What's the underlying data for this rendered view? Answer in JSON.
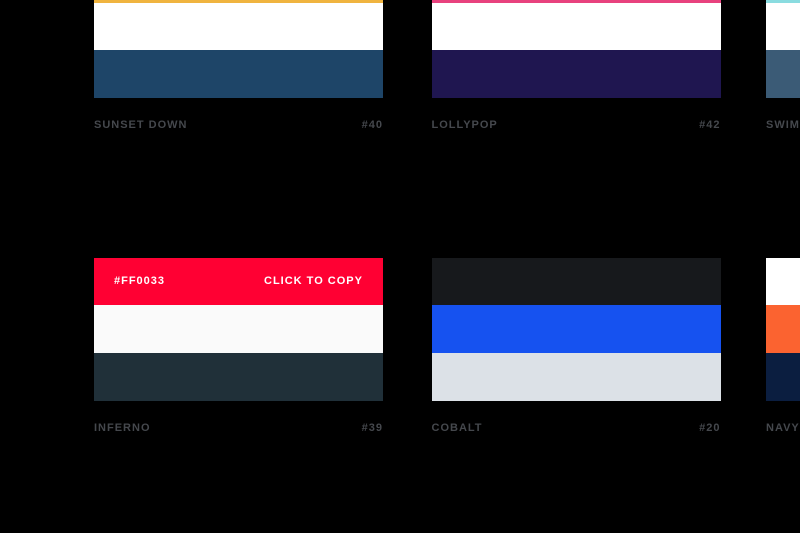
{
  "page": {
    "background": "#000000",
    "label_color": "#45484d"
  },
  "palettes": [
    {
      "name": "SUNSET DOWN",
      "number": "#40",
      "colors": [
        "#F0B43F",
        "#FFFFFF",
        "#1E4568"
      ]
    },
    {
      "name": "LOLLYPOP",
      "number": "#42",
      "colors": [
        "#E8417E",
        "#FFFFFF",
        "#1F1650"
      ]
    },
    {
      "name": "SWIMMING",
      "number": "",
      "colors": [
        "#8ADCE0",
        "#FFFFFF",
        "#3B5B76"
      ]
    },
    {
      "name": "INFERNO",
      "number": "#39",
      "colors": [
        "#FF0033",
        "#FAFAFA",
        "#203039"
      ],
      "hover": {
        "swatch_index": 0,
        "hex": "#FF0033",
        "copy": "CLICK TO COPY"
      }
    },
    {
      "name": "COBALT",
      "number": "#20",
      "colors": [
        "#17191C",
        "#1652F0",
        "#DCE1E7"
      ]
    },
    {
      "name": "NAVY",
      "number": "",
      "colors": [
        "#FFFFFF",
        "#FB6330",
        "#0B1E40"
      ]
    }
  ]
}
